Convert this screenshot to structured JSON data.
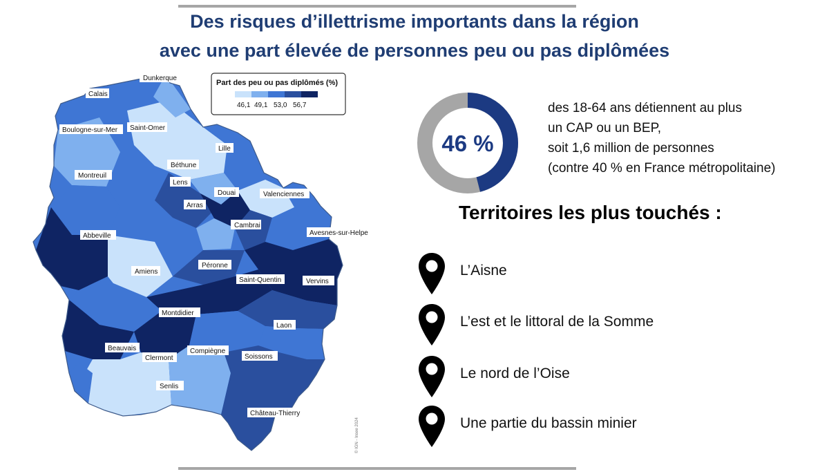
{
  "title": {
    "line1": "Des risques d’illettrisme importants dans la région",
    "line2": "avec une part élevée de personnes peu ou pas diplômées"
  },
  "colors": {
    "title": "#1f3d73",
    "class1": "#c9e2fb",
    "class2": "#7fb0ee",
    "class3": "#3f76d4",
    "class4": "#2a4f9e",
    "class5": "#0f2463",
    "donut_fill": "#1c3a82",
    "donut_track": "#a6a6a6"
  },
  "legend": {
    "title": "Part des peu ou pas diplômés (%)",
    "breaks": [
      "46,1",
      "49,1",
      "53,0",
      "56,7"
    ]
  },
  "map": {
    "cities": [
      "Dunkerque",
      "Calais",
      "Boulogne-sur-Mer",
      "Saint-Omer",
      "Lille",
      "Béthune",
      "Montreuil",
      "Lens",
      "Douai",
      "Valenciennes",
      "Arras",
      "Cambrai",
      "Avesnes-sur-Helpe",
      "Abbeville",
      "Péronne",
      "Amiens",
      "Saint-Quentin",
      "Vervins",
      "Montdidier",
      "Laon",
      "Beauvais",
      "Clermont",
      "Compiègne",
      "Soissons",
      "Senlis",
      "Château-Thierry"
    ],
    "credit": "© IGN - Insee 2024"
  },
  "stat": {
    "value": "46 %",
    "share": 0.46,
    "lines": [
      "des 18-64 ans détiennent au plus",
      "un CAP ou un BEP,",
      "soit 1,6 million de personnes",
      "(contre 40 % en France métropolitaine)"
    ]
  },
  "territories": {
    "heading": "Territoires les plus touchés :",
    "items": [
      "L’Aisne",
      "L’est et le littoral de la Somme",
      "Le nord de l’Oise",
      "Une partie du bassin minier"
    ]
  }
}
